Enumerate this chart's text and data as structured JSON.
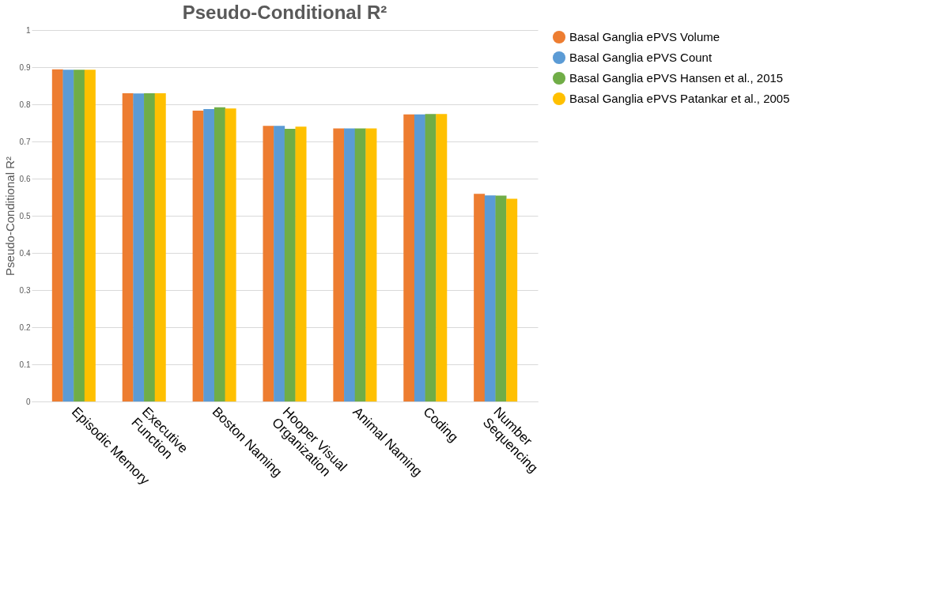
{
  "chart_data": {
    "type": "bar",
    "title": "Pseudo-Conditional R²",
    "ylabel": "Pseudo-Conditional R²",
    "categories": [
      "Episodic Memory",
      "Executive Function",
      "Boston Naming",
      "Hooper Visual Organization",
      "Animal Naming",
      "Coding",
      "Number Sequencing"
    ],
    "series": [
      {
        "name": "Basal Ganglia ePVS Volume",
        "color": "#ed7d31",
        "values": [
          0.894,
          0.83,
          0.783,
          0.742,
          0.735,
          0.773,
          0.559
        ]
      },
      {
        "name": "Basal Ganglia ePVS Count",
        "color": "#5b9bd5",
        "values": [
          0.893,
          0.829,
          0.787,
          0.742,
          0.735,
          0.773,
          0.555
        ]
      },
      {
        "name": "Basal Ganglia ePVS Hansen et al., 2015",
        "color": "#70ad47",
        "values": [
          0.893,
          0.83,
          0.792,
          0.734,
          0.735,
          0.774,
          0.554
        ]
      },
      {
        "name": "Basal Ganglia ePVS Patankar et al., 2005",
        "color": "#ffc000",
        "values": [
          0.893,
          0.83,
          0.789,
          0.74,
          0.735,
          0.774,
          0.546
        ]
      }
    ],
    "ylim": [
      0,
      1
    ],
    "yticks": [
      0,
      0.1,
      0.2,
      0.3,
      0.4,
      0.5,
      0.6,
      0.7,
      0.8,
      0.9,
      1
    ],
    "grid": "y",
    "legend": "right"
  }
}
